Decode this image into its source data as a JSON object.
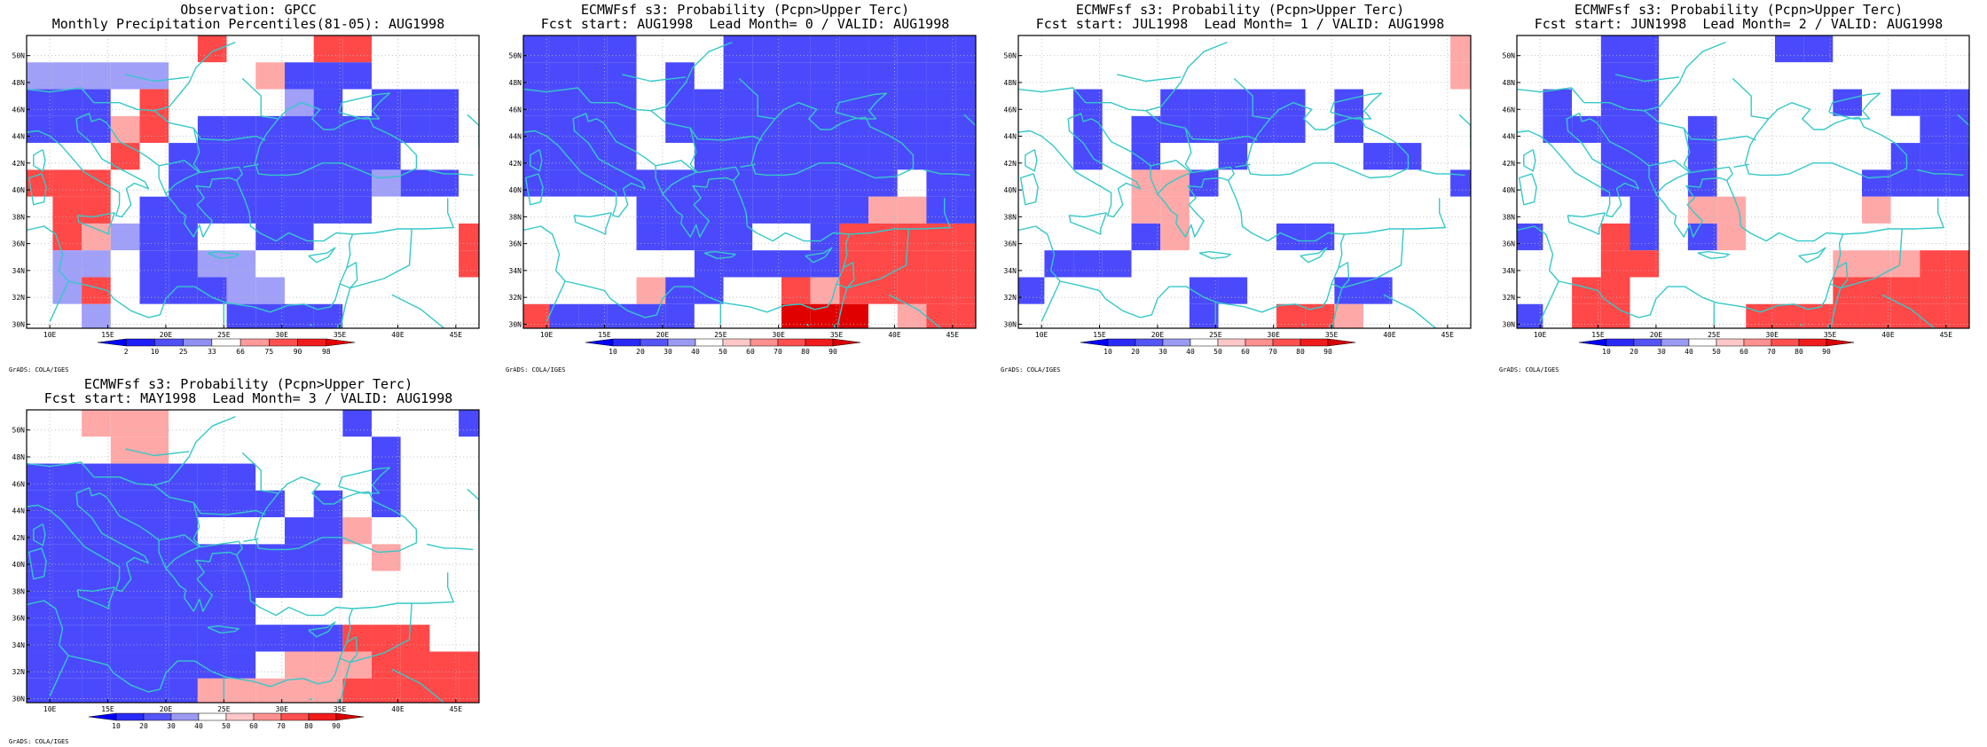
{
  "credit": "GrADS: COLA/IGES",
  "lon_labels": [
    "10E",
    "15E",
    "20E",
    "25E",
    "30E",
    "35E",
    "40E",
    "45E"
  ],
  "lat_labels": [
    "30N",
    "32N",
    "34N",
    "36N",
    "38N",
    "40N",
    "42N",
    "44N",
    "46N",
    "48N",
    "50N"
  ],
  "colors": {
    "coast": "#36c8c8",
    "grid": "#b8b8b8",
    "palette": [
      "#0000ff",
      "#4a4afc",
      "#a0a0f8",
      "#ffffff",
      "#ffa8a8",
      "#ff4848",
      "#e00000",
      "#a00000"
    ]
  },
  "panels": [
    {
      "title1": "Observation: GPCC",
      "title2": "Monthly Precipitation Percentiles(81-05): AUG1998",
      "colorbar_labels": [
        "2",
        "10",
        "25",
        "33",
        "66",
        "75",
        "90",
        "98"
      ],
      "grid": [
        "3333335333553333",
        "2222233341113333",
        "1113533332131113",
        "1114531111111113",
        "3335311111111333",
        "5553311111112113",
        "3553111111113333",
        "3542113311333335",
        "3223112233333335",
        "3253111223333333",
        "3323333111133333"
      ]
    },
    {
      "title1": "ECMWFsf s3: Probability (Pcpn>Upper Terc)",
      "title2": "Fcst start: AUG1998  Lead Month= 0 / VALID: AUG1998",
      "colorbar_labels": [
        "10",
        "20",
        "30",
        "40",
        "50",
        "60",
        "70",
        "80",
        "90"
      ],
      "grid": [
        "1111333111111111",
        "1111313111111111",
        "1111311111111111",
        "1111311111111111",
        "1111331111111111",
        "1111111111111311",
        "3333111111114411",
        "3333111133155555",
        "3333331111155555",
        "3333411335455555",
        "5111113336663455"
      ]
    },
    {
      "title1": "ECMWFsf s3: Probability (Pcpn>Upper Terc)",
      "title2": "Fcst start: JUL1998  Lead Month= 1 / VALID: AUG1998",
      "colorbar_labels": [
        "10",
        "20",
        "30",
        "40",
        "50",
        "60",
        "70",
        "80",
        "90"
      ],
      "grid": [
        "3333333333333334",
        "3333333333333334",
        "3313311111313333",
        "3313111111313333",
        "3313133133331133",
        "3333441333333331",
        "3333443333333333",
        "3333143331133333",
        "3111333333333333",
        "1333331133311333",
        "3333331335543333"
      ]
    },
    {
      "title1": "ECMWFsf s3: Probability (Pcpn>Upper Terc)",
      "title2": "Fcst start: JUN1998  Lead Month= 2 / VALID: AUG1998",
      "colorbar_labels": [
        "10",
        "20",
        "30",
        "40",
        "50",
        "60",
        "70",
        "80",
        "90"
      ],
      "grid": [
        "3331133331133333",
        "3331133333333333",
        "3131133333313111",
        "3111131333333311",
        "3331131333333111",
        "3331131333331111",
        "3333134433334333",
        "1335131433333333",
        "3335533333344455",
        "3355333333355555",
        "1355333355555555"
      ]
    },
    {
      "title1": "ECMWFsf s3: Probability (Pcpn>Upper Terc)",
      "title2": "Fcst start: MAY1998  Lead Month= 3 / VALID: AUG1998",
      "colorbar_labels": [
        "10",
        "20",
        "30",
        "40",
        "50",
        "60",
        "70",
        "80",
        "90"
      ],
      "grid": [
        "3344433333313331",
        "3334433333331333",
        "1111111133331333",
        "1111111113131333",
        "1111113331143333",
        "1111111111134333",
        "1111111111133333",
        "1111111133333333",
        "1111111111155533",
        "1111111134445555",
        "1111114444455555"
      ]
    }
  ]
}
